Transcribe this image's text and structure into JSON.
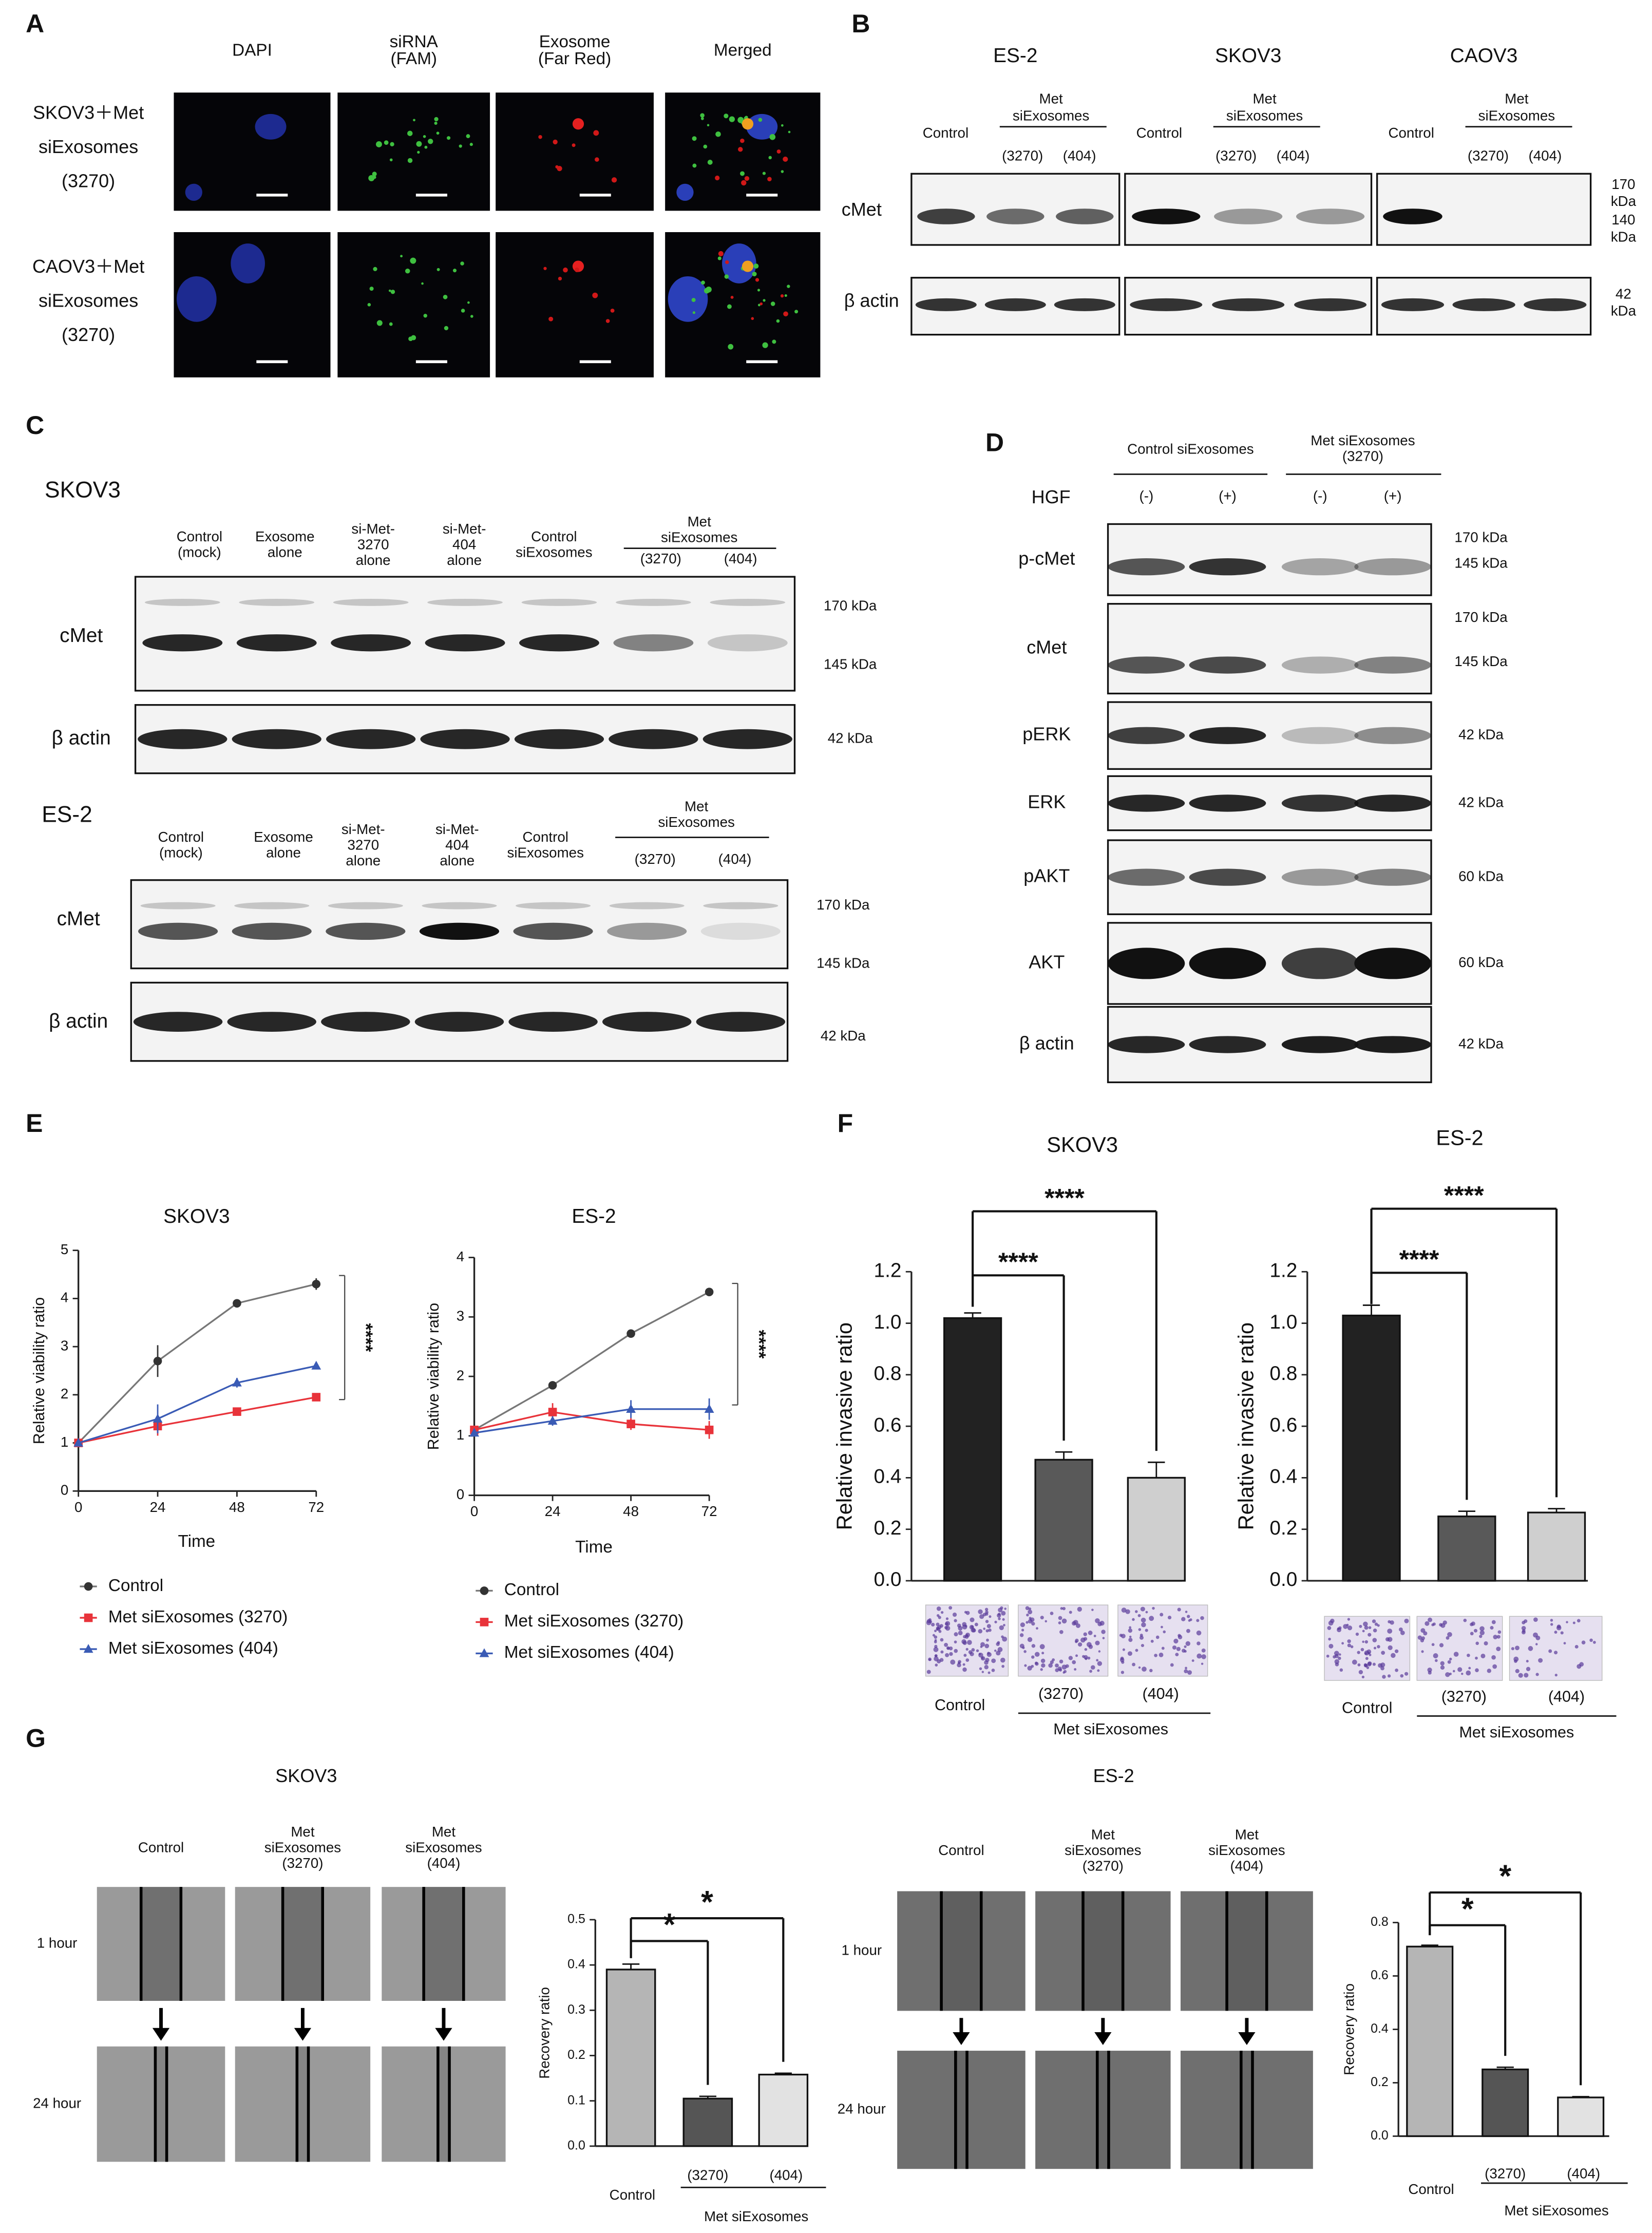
{
  "panel_labels": [
    "A",
    "B",
    "C",
    "D",
    "E",
    "F",
    "G"
  ],
  "panel_a": {
    "columns": [
      [
        "DAPI"
      ],
      [
        "siRNA",
        "(FAM)"
      ],
      [
        "Exosome",
        "(Far Red)"
      ],
      [
        "Merged"
      ]
    ],
    "rows": [
      [
        "SKOV3＋Met",
        "siExosomes",
        "(3270)"
      ],
      [
        "CAOV3＋Met",
        "siExosomes",
        "(3270)"
      ]
    ]
  },
  "panel_b": {
    "cell_lines": [
      "ES-2",
      "SKOV3",
      "CAOV3"
    ],
    "lane_header": [
      "Control",
      "Met",
      "siExosomes",
      "(3270)",
      "(404)"
    ],
    "rows": [
      "cMet",
      "β actin"
    ],
    "kda": [
      "170",
      "kDa",
      "140",
      "kDa",
      "42",
      "kDa"
    ]
  },
  "panel_c": {
    "blots": [
      {
        "cell_line": "SKOV3",
        "lanes": [
          [
            "Control",
            "(mock)"
          ],
          [
            "Exosome",
            "alone"
          ],
          [
            "si-Met-",
            "3270",
            "alone"
          ],
          [
            "si-Met-",
            "404",
            "alone"
          ],
          [
            "Control",
            "siExosomes"
          ]
        ],
        "group": [
          "Met",
          "siExosomes"
        ],
        "sublanes": [
          "(3270)",
          "(404)"
        ],
        "rows": [
          "cMet",
          "β actin"
        ],
        "kda": [
          "170 kDa",
          "145 kDa",
          "42 kDa"
        ]
      },
      {
        "cell_line": "ES-2",
        "lanes": [
          [
            "Control",
            "(mock)"
          ],
          [
            "Exosome",
            "alone"
          ],
          [
            "si-Met-",
            "3270",
            "alone"
          ],
          [
            "si-Met-",
            "404",
            "alone"
          ],
          [
            "Control",
            "siExosomes"
          ]
        ],
        "group": [
          "Met",
          "siExosomes"
        ],
        "sublanes": [
          "(3270)",
          "(404)"
        ],
        "rows": [
          "cMet",
          "β actin"
        ],
        "kda": [
          "170 kDa",
          "145 kDa",
          "42 kDa"
        ]
      }
    ]
  },
  "panel_d": {
    "groups": [
      [
        "Control siExosomes"
      ],
      [
        "Met siExosomes",
        "(3270)"
      ]
    ],
    "hgf_label": "HGF",
    "hgf": [
      "(-)",
      "(+)",
      "(-)",
      "(+)"
    ],
    "rows": [
      {
        "name": "p-cMet",
        "kda": [
          "170 kDa",
          "145 kDa"
        ]
      },
      {
        "name": "cMet",
        "kda": [
          "170 kDa",
          "145 kDa"
        ]
      },
      {
        "name": "pERK",
        "kda": [
          "42 kDa"
        ]
      },
      {
        "name": "ERK",
        "kda": [
          "42 kDa"
        ]
      },
      {
        "name": "pAKT",
        "kda": [
          "60 kDa"
        ]
      },
      {
        "name": "AKT",
        "kda": [
          "60 kDa"
        ]
      },
      {
        "name": "β actin",
        "kda": [
          "42 kDa"
        ]
      }
    ]
  },
  "panel_g": {
    "columns": [
      [
        "Control"
      ],
      [
        "Met",
        "siExosomes",
        "(3270)"
      ],
      [
        "Met",
        "siExosomes",
        "(404)"
      ]
    ],
    "rows": [
      "1 hour",
      "24 hour"
    ]
  },
  "chart_data": [
    {
      "type": "line",
      "title": "SKOV3",
      "x_label": "Time",
      "y_label": "Relative viability ratio",
      "x": [
        0,
        24,
        48,
        72
      ],
      "xlim": [
        0,
        72
      ],
      "xticks": [
        0,
        24,
        48,
        72
      ],
      "ylim": [
        0,
        5
      ],
      "yticks": [
        0,
        1,
        2,
        3,
        4,
        5
      ],
      "series": [
        {
          "name": "Control",
          "color": "#333333",
          "marker": "circle",
          "values": [
            1,
            2.7,
            3.9,
            4.3
          ],
          "errors": [
            0.03,
            0.33,
            0.07,
            0.12
          ]
        },
        {
          "name": "Met siExosomes (3270)",
          "color": "#e8333a",
          "marker": "square",
          "values": [
            1,
            1.35,
            1.65,
            1.95
          ],
          "errors": [
            0.03,
            0.2,
            0.05,
            0.05
          ]
        },
        {
          "name": "Met siExosomes (404)",
          "color": "#3a5bb5",
          "marker": "triangle",
          "values": [
            1,
            1.5,
            2.25,
            2.6
          ],
          "errors": [
            0.03,
            0.3,
            0.1,
            0.04
          ]
        }
      ],
      "annotations": [
        "****"
      ]
    },
    {
      "type": "line",
      "title": "ES-2",
      "x_label": "Time",
      "y_label": "Relative viability ratio",
      "x": [
        0,
        24,
        48,
        72
      ],
      "xlim": [
        0,
        72
      ],
      "xticks": [
        0,
        24,
        48,
        72
      ],
      "ylim": [
        0,
        4
      ],
      "yticks": [
        0,
        1,
        2,
        3,
        4
      ],
      "series": [
        {
          "name": "Control",
          "color": "#333333",
          "marker": "circle",
          "values": [
            1.1,
            1.85,
            2.72,
            3.42
          ],
          "errors": [
            0.05,
            0.06,
            0.04,
            0.04
          ]
        },
        {
          "name": "Met siExosomes (3270)",
          "color": "#e8333a",
          "marker": "square",
          "values": [
            1.1,
            1.4,
            1.2,
            1.1
          ],
          "errors": [
            0.05,
            0.15,
            0.1,
            0.15
          ]
        },
        {
          "name": "Met siExosomes (404)",
          "color": "#3a5bb5",
          "marker": "triangle",
          "values": [
            1.05,
            1.25,
            1.45,
            1.45
          ],
          "errors": [
            0.05,
            0.08,
            0.15,
            0.18
          ]
        }
      ],
      "annotations": [
        "****"
      ]
    },
    {
      "type": "bar",
      "title": "SKOV3",
      "y_label": "Relative invasive ratio",
      "categories": [
        "Control",
        "(3270)",
        "(404)"
      ],
      "group_label": "Met siExosomes",
      "values": [
        1.02,
        0.47,
        0.4
      ],
      "errors": [
        0.02,
        0.03,
        0.06
      ],
      "colors": [
        "#222222",
        "#595959",
        "#cfcfcf"
      ],
      "ylim": [
        0,
        1.2
      ],
      "yticks": [
        {
          "value": 0,
          "label": "0.0"
        },
        0.2,
        0.4,
        0.6,
        0.8,
        {
          "value": 1,
          "label": "1.0"
        },
        1.2
      ],
      "annotations": [
        "****",
        "****"
      ]
    },
    {
      "type": "bar",
      "title": "ES-2",
      "y_label": "Relative invasive ratio",
      "categories": [
        "Control",
        "(3270)",
        "(404)"
      ],
      "group_label": "Met siExosomes",
      "values": [
        1.03,
        0.25,
        0.265
      ],
      "errors": [
        0.04,
        0.02,
        0.015
      ],
      "colors": [
        "#222222",
        "#595959",
        "#cfcfcf"
      ],
      "ylim": [
        0,
        1.2
      ],
      "yticks": [
        {
          "value": 0,
          "label": "0.0"
        },
        0.2,
        0.4,
        0.6,
        0.8,
        {
          "value": 1,
          "label": "1.0"
        },
        1.2
      ],
      "annotations": [
        "****",
        "****"
      ]
    },
    {
      "type": "bar",
      "title": "SKOV3",
      "y_label": "Recovery ratio",
      "categories": [
        "Control",
        "(3270)",
        "(404)"
      ],
      "group_label": "Met siExosomes",
      "values": [
        0.39,
        0.105,
        0.158
      ],
      "errors": [
        0.012,
        0.005,
        0.003
      ],
      "colors": [
        "#b5b5b5",
        "#555555",
        "#e2e2e2"
      ],
      "ylim": [
        0,
        0.5
      ],
      "yticks": [
        {
          "value": 0,
          "label": "0.0"
        },
        0.1,
        0.2,
        0.3,
        0.4,
        0.5
      ],
      "annotations": [
        "*",
        "*"
      ]
    },
    {
      "type": "bar",
      "title": "ES-2",
      "y_label": "Recovery ratio",
      "categories": [
        "Control",
        "(3270)",
        "(404)"
      ],
      "group_label": "Met siExosomes",
      "values": [
        0.71,
        0.25,
        0.145
      ],
      "errors": [
        0.005,
        0.008,
        0.003
      ],
      "colors": [
        "#b5b5b5",
        "#555555",
        "#e2e2e2"
      ],
      "ylim": [
        0,
        0.8
      ],
      "yticks": [
        {
          "value": 0,
          "label": "0.0"
        },
        0.2,
        0.4,
        0.6,
        0.8
      ],
      "annotations": [
        "*",
        "*"
      ]
    }
  ]
}
